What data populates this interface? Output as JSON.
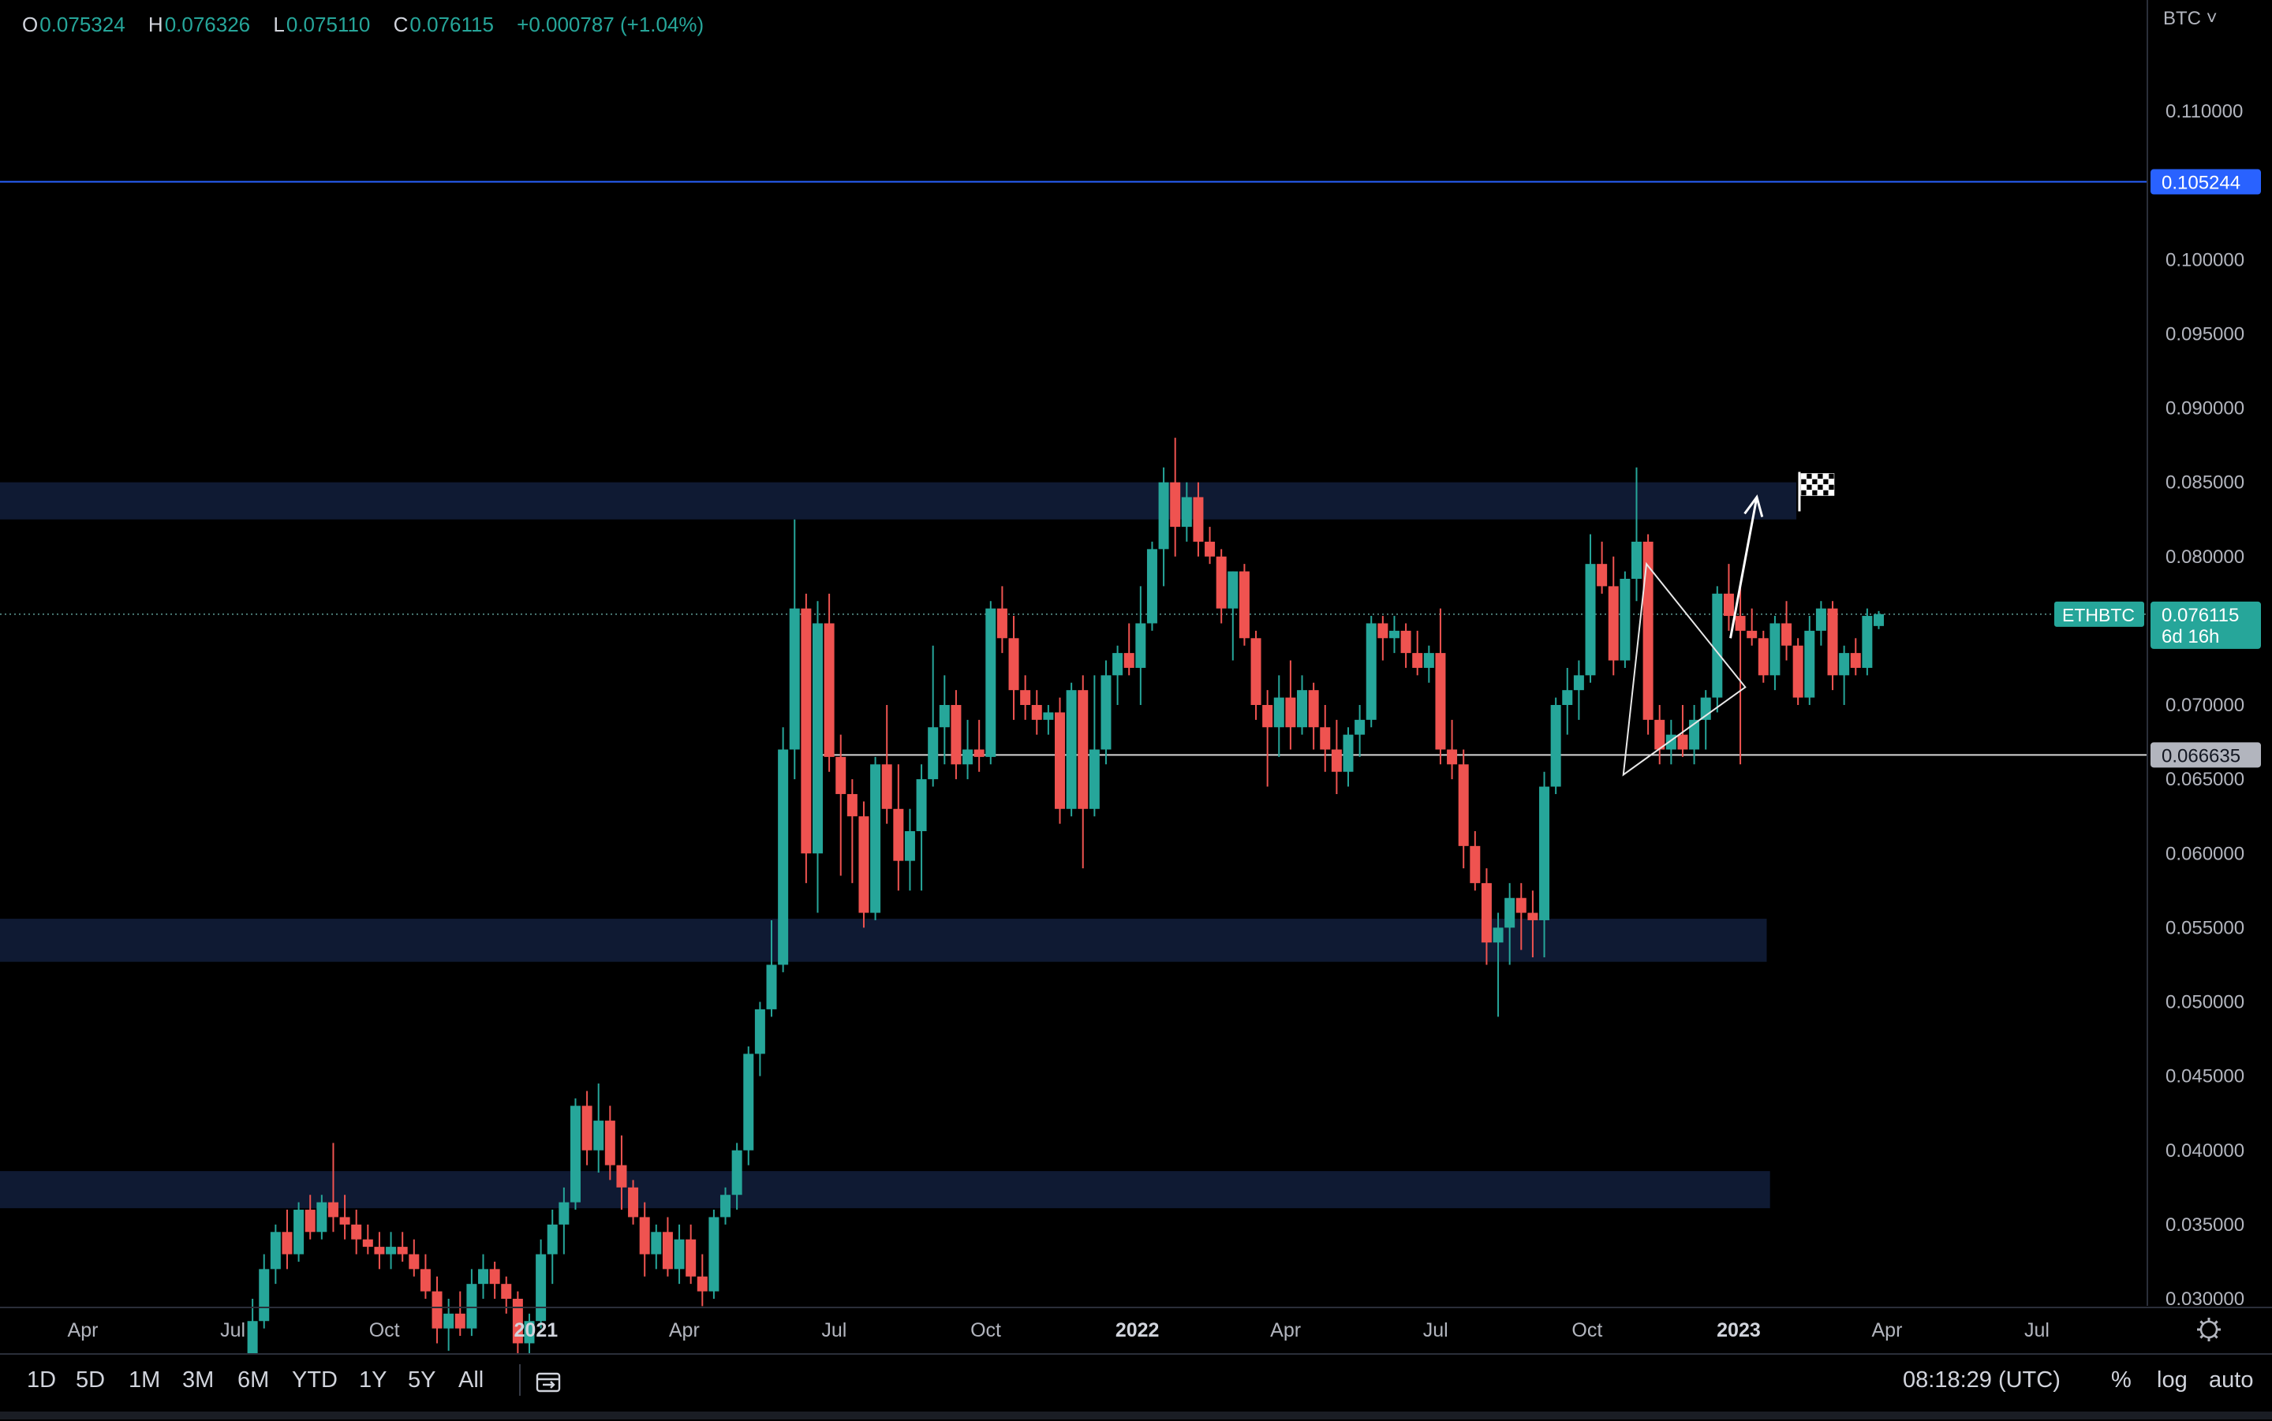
{
  "legend": {
    "o_key": "O",
    "o": "0.075324",
    "h_key": "H",
    "h": "0.076326",
    "l_key": "L",
    "l": "0.075110",
    "c_key": "C",
    "c": "0.076115",
    "change": "+0.000787 (+1.04%)"
  },
  "currency_menu": "BTC ˅",
  "toolbar": {
    "timeframes": [
      "1D",
      "5D",
      "1M",
      "3M",
      "6M",
      "YTD",
      "1Y",
      "5Y",
      "All"
    ],
    "goto_icon": "calendar-goto-icon",
    "clock": "08:18:29 (UTC)",
    "percent": "%",
    "log": "log",
    "auto": "auto"
  },
  "colors": {
    "up": "#26a69a",
    "down": "#ef5350",
    "zone": "#0f1a33",
    "horizontal_line": "#2962ff",
    "background": "#000000"
  },
  "chart_data": {
    "type": "candlestick",
    "symbol": "ETHBTC",
    "interval": "weekly",
    "y_axis": {
      "ylim": [
        0.0295,
        0.1165
      ],
      "tick_labels": [
        "0.110000",
        "0.105000",
        "0.100000",
        "0.095000",
        "0.090000",
        "0.085000",
        "0.080000",
        "0.075000",
        "0.070000",
        "0.065000",
        "0.060000",
        "0.055000",
        "0.050000",
        "0.045000",
        "0.040000",
        "0.035000",
        "0.030000"
      ],
      "tick_values": [
        0.11,
        0.105,
        0.1,
        0.095,
        0.09,
        0.085,
        0.08,
        0.075,
        0.07,
        0.065,
        0.06,
        0.055,
        0.05,
        0.045,
        0.04,
        0.035,
        0.03
      ]
    },
    "x_axis": {
      "tick_labels": [
        "Apr",
        "Jul",
        "Oct",
        "2021",
        "Apr",
        "Jul",
        "Oct",
        "2022",
        "Apr",
        "Jul",
        "Oct",
        "2023",
        "Apr",
        "Jul"
      ],
      "tick_dates": [
        "2020-04-01",
        "2020-07-01",
        "2020-10-01",
        "2021-01-01",
        "2021-04-01",
        "2021-07-01",
        "2021-10-01",
        "2022-01-01",
        "2022-04-01",
        "2022-07-01",
        "2022-10-01",
        "2023-01-01",
        "2023-04-01",
        "2023-07-01"
      ],
      "xlim": [
        "2020-01-20",
        "2023-09-10"
      ]
    },
    "last_price": {
      "label": "ETHBTC",
      "value": "0.076115",
      "countdown": "6d 16h"
    },
    "price_lines": [
      {
        "value": 0.105244,
        "label": "0.105244",
        "style": "solid-blue"
      },
      {
        "value": 0.066635,
        "label": "0.066635",
        "style": "solid-white",
        "from": "2021-06-20"
      }
    ],
    "zones": [
      {
        "low": 0.0825,
        "high": 0.085,
        "to": "2023-02-05"
      },
      {
        "low": 0.0527,
        "high": 0.0556,
        "to": "2023-01-18"
      },
      {
        "low": 0.0361,
        "high": 0.0386,
        "to": "2023-01-20"
      }
    ],
    "triangle": [
      {
        "date": "2022-10-23",
        "value": 0.0653
      },
      {
        "date": "2022-11-06",
        "value": 0.0795
      },
      {
        "date": "2023-01-05",
        "value": 0.0712
      }
    ],
    "arrow": {
      "from": {
        "date": "2022-12-27",
        "value": 0.0745
      },
      "to": {
        "date": "2023-01-12",
        "value": 0.084
      }
    },
    "flag_icon": "checkered-flag-icon",
    "candles": [
      [
        "2020-07-13",
        0.0252,
        0.03,
        0.024,
        0.0285
      ],
      [
        "2020-07-20",
        0.0285,
        0.033,
        0.028,
        0.032
      ],
      [
        "2020-07-27",
        0.032,
        0.035,
        0.031,
        0.0345
      ],
      [
        "2020-08-03",
        0.0345,
        0.036,
        0.032,
        0.033
      ],
      [
        "2020-08-10",
        0.033,
        0.0365,
        0.0325,
        0.036
      ],
      [
        "2020-08-17",
        0.036,
        0.037,
        0.034,
        0.0345
      ],
      [
        "2020-08-24",
        0.0345,
        0.037,
        0.034,
        0.0365
      ],
      [
        "2020-08-31",
        0.0365,
        0.0405,
        0.0345,
        0.0355
      ],
      [
        "2020-09-07",
        0.0355,
        0.037,
        0.034,
        0.035
      ],
      [
        "2020-09-14",
        0.035,
        0.036,
        0.033,
        0.034
      ],
      [
        "2020-09-21",
        0.034,
        0.035,
        0.033,
        0.0335
      ],
      [
        "2020-09-28",
        0.0335,
        0.0345,
        0.032,
        0.033
      ],
      [
        "2020-10-05",
        0.033,
        0.0345,
        0.032,
        0.0335
      ],
      [
        "2020-10-12",
        0.0335,
        0.0345,
        0.0325,
        0.033
      ],
      [
        "2020-10-19",
        0.033,
        0.034,
        0.0315,
        0.032
      ],
      [
        "2020-10-26",
        0.032,
        0.033,
        0.03,
        0.0305
      ],
      [
        "2020-11-02",
        0.0305,
        0.0315,
        0.027,
        0.028
      ],
      [
        "2020-11-09",
        0.028,
        0.03,
        0.0265,
        0.029
      ],
      [
        "2020-11-16",
        0.029,
        0.0305,
        0.0275,
        0.028
      ],
      [
        "2020-11-23",
        0.028,
        0.032,
        0.0275,
        0.031
      ],
      [
        "2020-11-30",
        0.031,
        0.033,
        0.03,
        0.032
      ],
      [
        "2020-12-07",
        0.032,
        0.0325,
        0.03,
        0.031
      ],
      [
        "2020-12-14",
        0.031,
        0.0315,
        0.029,
        0.03
      ],
      [
        "2020-12-21",
        0.03,
        0.0305,
        0.026,
        0.027
      ],
      [
        "2020-12-28",
        0.027,
        0.029,
        0.0255,
        0.0285
      ],
      [
        "2021-01-04",
        0.0285,
        0.034,
        0.028,
        0.033
      ],
      [
        "2021-01-11",
        0.033,
        0.036,
        0.031,
        0.035
      ],
      [
        "2021-01-18",
        0.035,
        0.0375,
        0.033,
        0.0365
      ],
      [
        "2021-01-25",
        0.0365,
        0.0435,
        0.036,
        0.043
      ],
      [
        "2021-02-01",
        0.043,
        0.044,
        0.039,
        0.04
      ],
      [
        "2021-02-08",
        0.04,
        0.0445,
        0.0385,
        0.042
      ],
      [
        "2021-02-15",
        0.042,
        0.043,
        0.038,
        0.039
      ],
      [
        "2021-02-22",
        0.039,
        0.041,
        0.036,
        0.0375
      ],
      [
        "2021-03-01",
        0.0375,
        0.038,
        0.035,
        0.0355
      ],
      [
        "2021-03-08",
        0.0355,
        0.0365,
        0.0315,
        0.033
      ],
      [
        "2021-03-15",
        0.033,
        0.035,
        0.032,
        0.0345
      ],
      [
        "2021-03-22",
        0.0345,
        0.0355,
        0.0315,
        0.032
      ],
      [
        "2021-03-29",
        0.032,
        0.035,
        0.031,
        0.034
      ],
      [
        "2021-04-05",
        0.034,
        0.035,
        0.031,
        0.0315
      ],
      [
        "2021-04-12",
        0.0315,
        0.033,
        0.0295,
        0.0305
      ],
      [
        "2021-04-19",
        0.0305,
        0.036,
        0.03,
        0.0355
      ],
      [
        "2021-04-26",
        0.0355,
        0.0375,
        0.035,
        0.037
      ],
      [
        "2021-05-03",
        0.037,
        0.0405,
        0.036,
        0.04
      ],
      [
        "2021-05-10",
        0.04,
        0.047,
        0.039,
        0.0465
      ],
      [
        "2021-05-17",
        0.0465,
        0.05,
        0.045,
        0.0495
      ],
      [
        "2021-05-24",
        0.0495,
        0.0555,
        0.049,
        0.0525
      ],
      [
        "2021-05-31",
        0.0525,
        0.0685,
        0.052,
        0.067
      ],
      [
        "2021-06-07",
        0.067,
        0.0825,
        0.065,
        0.0765
      ],
      [
        "2021-06-14",
        0.0765,
        0.0775,
        0.058,
        0.06
      ],
      [
        "2021-06-21",
        0.06,
        0.077,
        0.056,
        0.0755
      ],
      [
        "2021-06-28",
        0.0755,
        0.0775,
        0.0655,
        0.0665
      ],
      [
        "2021-07-05",
        0.0665,
        0.068,
        0.0585,
        0.064
      ],
      [
        "2021-07-12",
        0.064,
        0.065,
        0.058,
        0.0625
      ],
      [
        "2021-07-19",
        0.0625,
        0.0635,
        0.055,
        0.056
      ],
      [
        "2021-07-26",
        0.056,
        0.0665,
        0.0555,
        0.066
      ],
      [
        "2021-08-02",
        0.066,
        0.07,
        0.062,
        0.063
      ],
      [
        "2021-08-09",
        0.063,
        0.066,
        0.0575,
        0.0595
      ],
      [
        "2021-08-16",
        0.0595,
        0.063,
        0.0575,
        0.0615
      ],
      [
        "2021-08-23",
        0.0615,
        0.066,
        0.0575,
        0.065
      ],
      [
        "2021-08-30",
        0.065,
        0.074,
        0.0645,
        0.0685
      ],
      [
        "2021-09-06",
        0.0685,
        0.072,
        0.066,
        0.07
      ],
      [
        "2021-09-13",
        0.07,
        0.071,
        0.065,
        0.066
      ],
      [
        "2021-09-20",
        0.066,
        0.069,
        0.065,
        0.067
      ],
      [
        "2021-09-27",
        0.067,
        0.069,
        0.0655,
        0.0665
      ],
      [
        "2021-10-04",
        0.0665,
        0.077,
        0.066,
        0.0765
      ],
      [
        "2021-10-11",
        0.0765,
        0.078,
        0.0735,
        0.0745
      ],
      [
        "2021-10-18",
        0.0745,
        0.076,
        0.069,
        0.071
      ],
      [
        "2021-10-25",
        0.071,
        0.072,
        0.069,
        0.07
      ],
      [
        "2021-11-01",
        0.07,
        0.071,
        0.068,
        0.069
      ],
      [
        "2021-11-08",
        0.069,
        0.07,
        0.068,
        0.0695
      ],
      [
        "2021-11-15",
        0.0695,
        0.0705,
        0.062,
        0.063
      ],
      [
        "2021-11-22",
        0.063,
        0.0715,
        0.0625,
        0.071
      ],
      [
        "2021-11-29",
        0.071,
        0.072,
        0.059,
        0.063
      ],
      [
        "2021-12-06",
        0.063,
        0.072,
        0.0625,
        0.067
      ],
      [
        "2021-12-13",
        0.067,
        0.073,
        0.066,
        0.072
      ],
      [
        "2021-12-20",
        0.072,
        0.074,
        0.07,
        0.0735
      ],
      [
        "2021-12-27",
        0.0735,
        0.0755,
        0.072,
        0.0725
      ],
      [
        "2022-01-03",
        0.0725,
        0.078,
        0.07,
        0.0755
      ],
      [
        "2022-01-10",
        0.0755,
        0.081,
        0.075,
        0.0805
      ],
      [
        "2022-01-17",
        0.0805,
        0.086,
        0.078,
        0.085
      ],
      [
        "2022-01-24",
        0.085,
        0.088,
        0.08,
        0.082
      ],
      [
        "2022-01-31",
        0.082,
        0.085,
        0.081,
        0.084
      ],
      [
        "2022-02-07",
        0.084,
        0.085,
        0.08,
        0.081
      ],
      [
        "2022-02-14",
        0.081,
        0.082,
        0.0795,
        0.08
      ],
      [
        "2022-02-21",
        0.08,
        0.0805,
        0.0755,
        0.0765
      ],
      [
        "2022-02-28",
        0.0765,
        0.079,
        0.073,
        0.079
      ],
      [
        "2022-03-07",
        0.079,
        0.0795,
        0.074,
        0.0745
      ],
      [
        "2022-03-14",
        0.0745,
        0.075,
        0.069,
        0.07
      ],
      [
        "2022-03-21",
        0.07,
        0.071,
        0.0645,
        0.0685
      ],
      [
        "2022-03-28",
        0.0685,
        0.072,
        0.0665,
        0.0705
      ],
      [
        "2022-04-04",
        0.0705,
        0.073,
        0.067,
        0.0685
      ],
      [
        "2022-04-11",
        0.0685,
        0.072,
        0.068,
        0.071
      ],
      [
        "2022-04-18",
        0.071,
        0.0715,
        0.067,
        0.0685
      ],
      [
        "2022-04-25",
        0.0685,
        0.07,
        0.0655,
        0.067
      ],
      [
        "2022-05-02",
        0.067,
        0.069,
        0.064,
        0.0655
      ],
      [
        "2022-05-09",
        0.0655,
        0.0685,
        0.0645,
        0.068
      ],
      [
        "2022-05-16",
        0.068,
        0.07,
        0.0665,
        0.069
      ],
      [
        "2022-05-23",
        0.069,
        0.076,
        0.0685,
        0.0755
      ],
      [
        "2022-05-30",
        0.0755,
        0.076,
        0.073,
        0.0745
      ],
      [
        "2022-06-06",
        0.0745,
        0.076,
        0.0735,
        0.075
      ],
      [
        "2022-06-13",
        0.075,
        0.0755,
        0.0725,
        0.0735
      ],
      [
        "2022-06-20",
        0.0735,
        0.075,
        0.072,
        0.0725
      ],
      [
        "2022-06-27",
        0.0725,
        0.074,
        0.0715,
        0.0735
      ],
      [
        "2022-07-04",
        0.0735,
        0.0765,
        0.066,
        0.067
      ],
      [
        "2022-07-11",
        0.067,
        0.069,
        0.065,
        0.066
      ],
      [
        "2022-07-18",
        0.066,
        0.067,
        0.059,
        0.0605
      ],
      [
        "2022-07-25",
        0.0605,
        0.0615,
        0.0575,
        0.058
      ],
      [
        "2022-08-01",
        0.058,
        0.059,
        0.0525,
        0.054
      ],
      [
        "2022-08-08",
        0.054,
        0.056,
        0.049,
        0.055
      ],
      [
        "2022-08-15",
        0.055,
        0.058,
        0.0525,
        0.057
      ],
      [
        "2022-08-22",
        0.057,
        0.058,
        0.0535,
        0.056
      ],
      [
        "2022-08-29",
        0.056,
        0.0575,
        0.053,
        0.0555
      ],
      [
        "2022-09-05",
        0.0555,
        0.0655,
        0.053,
        0.0645
      ],
      [
        "2022-09-12",
        0.0645,
        0.0705,
        0.064,
        0.07
      ],
      [
        "2022-09-19",
        0.07,
        0.0725,
        0.068,
        0.071
      ],
      [
        "2022-09-26",
        0.071,
        0.073,
        0.069,
        0.072
      ],
      [
        "2022-10-03",
        0.072,
        0.0815,
        0.0715,
        0.0795
      ],
      [
        "2022-10-10",
        0.0795,
        0.081,
        0.0775,
        0.078
      ],
      [
        "2022-10-17",
        0.078,
        0.08,
        0.072,
        0.073
      ],
      [
        "2022-10-24",
        0.073,
        0.079,
        0.0725,
        0.0785
      ],
      [
        "2022-10-31",
        0.0785,
        0.086,
        0.077,
        0.081
      ],
      [
        "2022-11-07",
        0.081,
        0.0815,
        0.068,
        0.069
      ],
      [
        "2022-11-14",
        0.069,
        0.07,
        0.066,
        0.067
      ],
      [
        "2022-11-21",
        0.067,
        0.069,
        0.066,
        0.068
      ],
      [
        "2022-11-28",
        0.068,
        0.07,
        0.0665,
        0.067
      ],
      [
        "2022-12-05",
        0.067,
        0.07,
        0.066,
        0.069
      ],
      [
        "2022-12-12",
        0.069,
        0.071,
        0.067,
        0.0705
      ],
      [
        "2022-12-19",
        0.0705,
        0.078,
        0.0695,
        0.0775
      ],
      [
        "2022-12-26",
        0.0775,
        0.0795,
        0.075,
        0.076
      ],
      [
        "2023-01-02",
        0.076,
        0.078,
        0.066,
        0.075
      ],
      [
        "2023-01-09",
        0.075,
        0.0765,
        0.074,
        0.0745
      ],
      [
        "2023-01-16",
        0.0745,
        0.075,
        0.0715,
        0.072
      ],
      [
        "2023-01-23",
        0.072,
        0.076,
        0.071,
        0.0755
      ],
      [
        "2023-01-30",
        0.0755,
        0.077,
        0.073,
        0.074
      ],
      [
        "2023-02-06",
        0.074,
        0.0745,
        0.07,
        0.0705
      ],
      [
        "2023-02-13",
        0.0705,
        0.076,
        0.07,
        0.075
      ],
      [
        "2023-02-20",
        0.075,
        0.077,
        0.074,
        0.0765
      ],
      [
        "2023-02-27",
        0.0765,
        0.077,
        0.071,
        0.072
      ],
      [
        "2023-03-06",
        0.072,
        0.074,
        0.07,
        0.0735
      ],
      [
        "2023-03-13",
        0.0735,
        0.0745,
        0.072,
        0.0725
      ],
      [
        "2023-03-20",
        0.0725,
        0.0765,
        0.072,
        0.076
      ],
      [
        "2023-03-27",
        0.07532,
        0.07633,
        0.07511,
        0.07612
      ]
    ]
  }
}
